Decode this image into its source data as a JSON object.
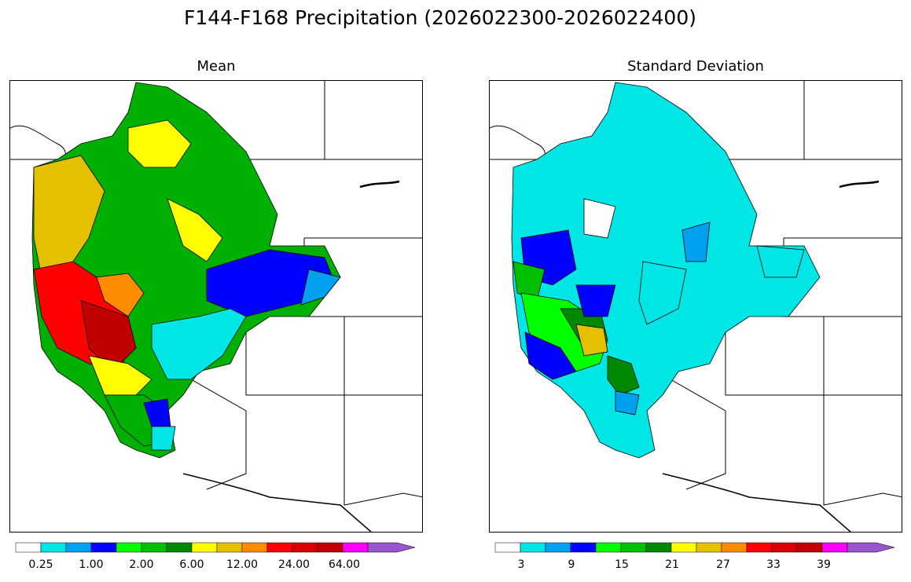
{
  "figure": {
    "title": "F144-F168 Precipitation (2026022300-2026022400)"
  },
  "panels": [
    {
      "id": "mean",
      "subtitle": "Mean",
      "colorbar": {
        "colors": [
          "#ffffff",
          "#00e5e5",
          "#00a0f0",
          "#0000ff",
          "#00ff00",
          "#00c000",
          "#008800",
          "#ffff00",
          "#e5c000",
          "#ff8c00",
          "#ff0000",
          "#d60000",
          "#c00000",
          "#ff00ff",
          "#9955cc"
        ],
        "tick_labels": [
          "0.25",
          "1.00",
          "2.00",
          "6.00",
          "12.00",
          "24.00",
          "64.00"
        ]
      }
    },
    {
      "id": "stddev",
      "subtitle": "Standard Deviation",
      "colorbar": {
        "colors": [
          "#ffffff",
          "#00e5e5",
          "#00a0f0",
          "#0000ff",
          "#00ff00",
          "#00c000",
          "#008800",
          "#ffff00",
          "#e5c000",
          "#ff8c00",
          "#ff0000",
          "#d60000",
          "#c00000",
          "#ff00ff",
          "#9955cc"
        ],
        "tick_labels": [
          "3",
          "9",
          "15",
          "21",
          "27",
          "33",
          "39"
        ]
      }
    }
  ]
}
